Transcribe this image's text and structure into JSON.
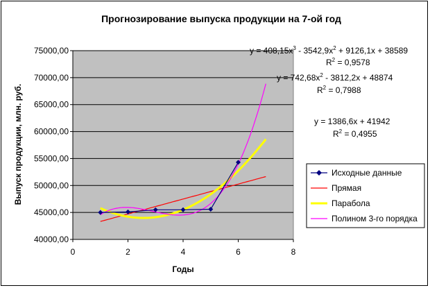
{
  "chart_data": {
    "type": "line",
    "title": "Прогнозирование выпуска продукции на 7-ой год",
    "xlabel": "Годы",
    "ylabel": "Выпуск продукции, млн. руб.",
    "xlim": [
      0,
      8
    ],
    "ylim": [
      40000,
      75000
    ],
    "x_ticks": [
      "0",
      "2",
      "4",
      "6",
      "8"
    ],
    "y_ticks": [
      "40000,00",
      "45000,00",
      "50000,00",
      "55000,00",
      "60000,00",
      "65000,00",
      "70000,00",
      "75000,00"
    ],
    "grid": "horizontal",
    "plot_background": "#c0c0c0",
    "series": [
      {
        "name": "Исходные данные",
        "kind": "line-markers",
        "color": "#000080",
        "x": [
          1,
          2,
          3,
          4,
          5,
          6
        ],
        "values": [
          45000,
          45100,
          45500,
          45500,
          45600,
          54300
        ]
      }
    ],
    "trendlines": [
      {
        "name": "Прямая",
        "color": "#ff0000",
        "coef": [
          41942,
          1386.6
        ],
        "x_range": [
          1,
          7
        ],
        "equation": {
          "lead": "y = 1386,6x + 41942",
          "r2_label": "R",
          "r2_value": " = 0,4955"
        }
      },
      {
        "name": "Парабола",
        "color": "#ffff00",
        "coef": [
          48874,
          -3812.2,
          742.68
        ],
        "x_range": [
          1,
          7
        ],
        "equation": {
          "lead": "y = 742,68x",
          "rest": " - 3812,2x + 48874",
          "r2_label": "R",
          "r2_value": " = 0,7988"
        }
      },
      {
        "name": "Полином 3-го порядка",
        "color": "#ff00ff",
        "coef": [
          38589,
          9126.1,
          -3542.9,
          408.15
        ],
        "x_range": [
          1,
          7
        ],
        "equation": {
          "lead": "y = 408,15x",
          "mid": " - 3542,9x",
          "rest": " + 9126,1x + 38589",
          "r2_label": "R",
          "r2_value": " = 0,9578"
        }
      }
    ],
    "sup2": "2",
    "sup3": "3",
    "legend_position": "right"
  }
}
